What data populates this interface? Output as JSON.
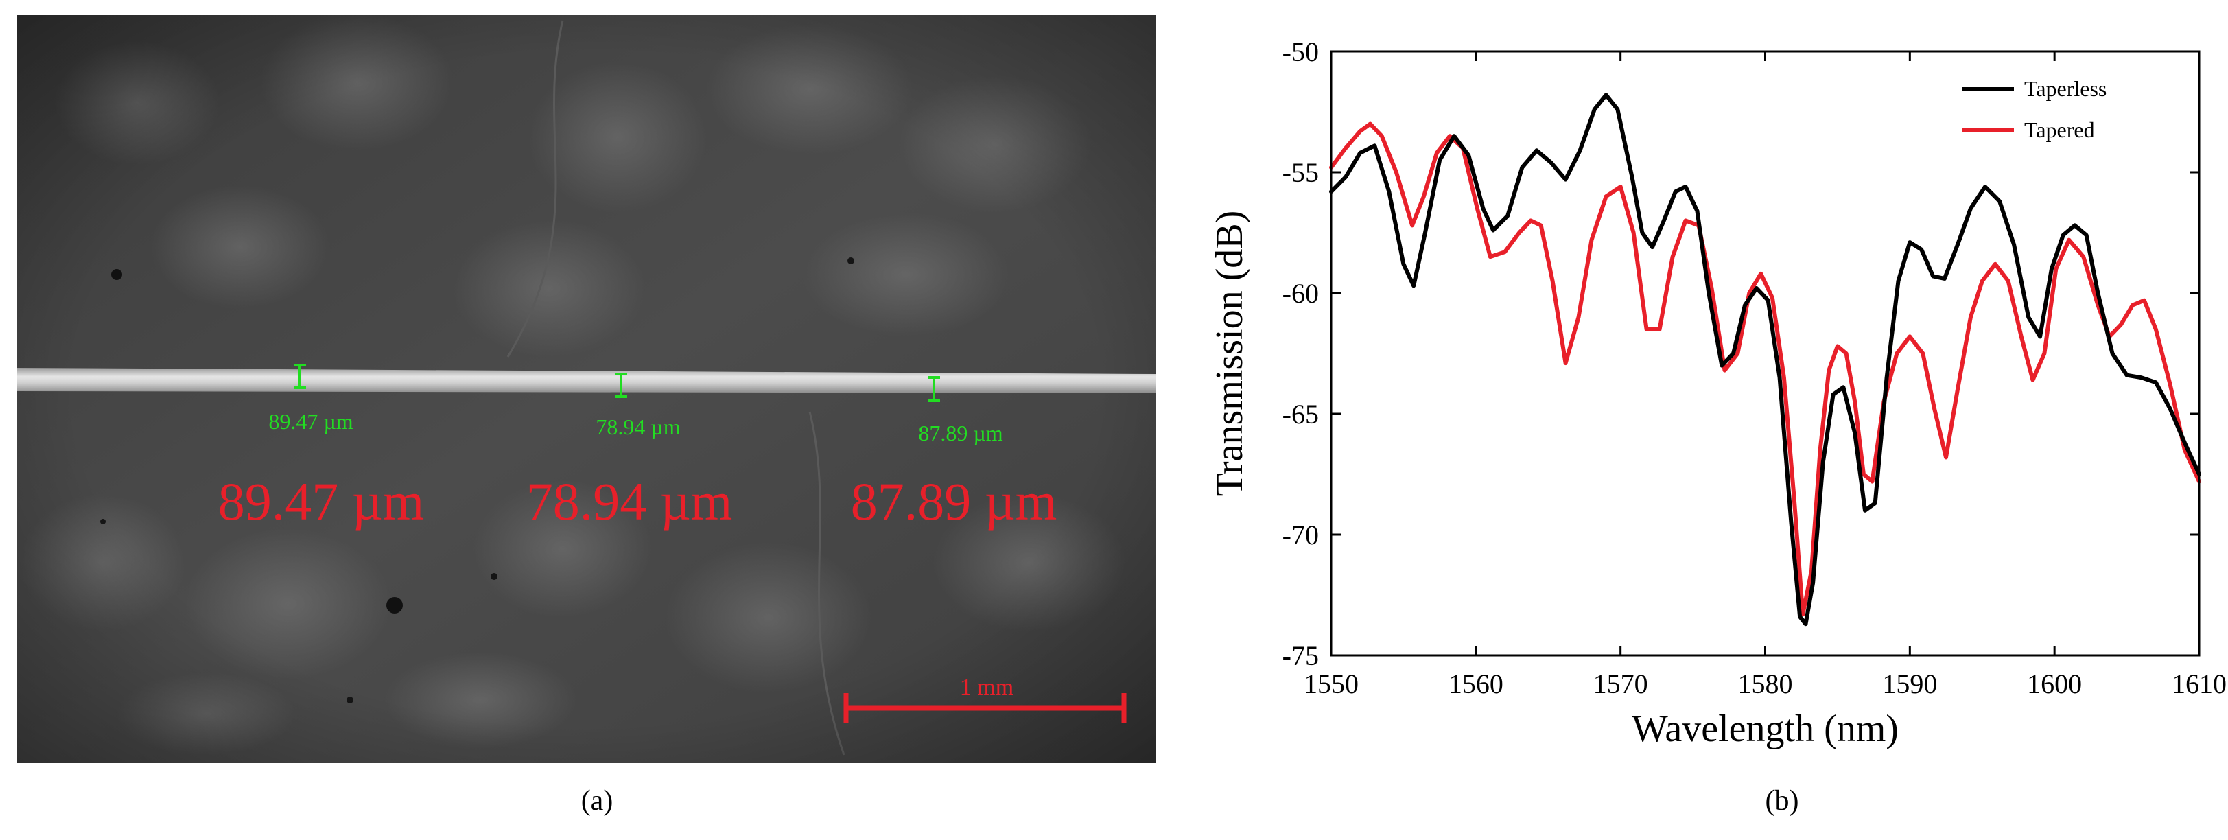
{
  "panel_a": {
    "caption": "(a)",
    "measurements": [
      {
        "label": "89.47 µm"
      },
      {
        "label": "78.94 µm"
      },
      {
        "label": "87.89 µm"
      }
    ],
    "scale_bar": {
      "label": "1 mm"
    },
    "colors": {
      "measure": "#22dd22",
      "annotation": "#e8202a",
      "scale": "#e8202a"
    }
  },
  "panel_b": {
    "caption": "(b)"
  },
  "chart_data": {
    "type": "line",
    "title": "",
    "xlabel": "Wavelength (nm)",
    "ylabel": "Transmission (dB)",
    "xlim": [
      1550,
      1610
    ],
    "ylim": [
      -75,
      -50
    ],
    "xticks": [
      1550,
      1560,
      1570,
      1580,
      1590,
      1600,
      1610
    ],
    "yticks": [
      -50,
      -55,
      -60,
      -65,
      -70,
      -75
    ],
    "legend_position": "top-right",
    "grid": false,
    "series": [
      {
        "name": "Taperless",
        "color": "#000000",
        "x": [
          1550,
          1551,
          1552,
          1553,
          1554,
          1555,
          1555.7,
          1556.5,
          1557.5,
          1558.5,
          1559.5,
          1560.5,
          1561.2,
          1562.2,
          1563.2,
          1564.2,
          1565.2,
          1566.2,
          1567.2,
          1568.2,
          1569,
          1569.8,
          1570.8,
          1571.5,
          1572.2,
          1573,
          1573.8,
          1574.5,
          1575.3,
          1576.1,
          1577,
          1577.8,
          1578.6,
          1579.4,
          1580.2,
          1581,
          1581.8,
          1582.4,
          1582.8,
          1583.3,
          1584,
          1584.7,
          1585.4,
          1586.2,
          1586.9,
          1587.6,
          1588.4,
          1589.2,
          1590,
          1590.8,
          1591.6,
          1592.4,
          1593.3,
          1594.2,
          1595.2,
          1596.2,
          1597.2,
          1598.2,
          1599,
          1599.8,
          1600.6,
          1601.4,
          1602.2,
          1603,
          1604,
          1605,
          1606,
          1607,
          1608,
          1609,
          1610
        ],
        "y": [
          -55.8,
          -55.2,
          -54.2,
          -53.9,
          -55.8,
          -58.8,
          -59.7,
          -57.5,
          -54.5,
          -53.5,
          -54.3,
          -56.5,
          -57.4,
          -56.8,
          -54.8,
          -54.1,
          -54.6,
          -55.3,
          -54.1,
          -52.4,
          -51.8,
          -52.4,
          -55.2,
          -57.5,
          -58.1,
          -57.0,
          -55.8,
          -55.6,
          -56.6,
          -60.0,
          -63.0,
          -62.5,
          -60.5,
          -59.8,
          -60.3,
          -63.5,
          -69.5,
          -73.4,
          -73.7,
          -72.0,
          -67.0,
          -64.2,
          -63.9,
          -65.8,
          -69.0,
          -68.7,
          -63.5,
          -59.5,
          -57.9,
          -58.2,
          -59.3,
          -59.4,
          -58.0,
          -56.5,
          -55.6,
          -56.2,
          -58.0,
          -61.0,
          -61.8,
          -59.0,
          -57.6,
          -57.2,
          -57.6,
          -60.0,
          -62.5,
          -63.4,
          -63.5,
          -63.7,
          -64.8,
          -66.2,
          -67.5
        ]
      },
      {
        "name": "Tapered",
        "color": "#e8202a",
        "x": [
          1550,
          1551,
          1552,
          1552.7,
          1553.5,
          1554.5,
          1555.6,
          1556.4,
          1557.3,
          1558.2,
          1559.1,
          1560.1,
          1561,
          1562,
          1563,
          1563.8,
          1564.5,
          1565.3,
          1566.2,
          1567.1,
          1568,
          1569,
          1570,
          1570.9,
          1571.8,
          1572.7,
          1573.6,
          1574.5,
          1575.4,
          1576.3,
          1577.2,
          1578.1,
          1578.9,
          1579.7,
          1580.5,
          1581.3,
          1582,
          1582.6,
          1583.2,
          1583.8,
          1584.4,
          1585,
          1585.6,
          1586.2,
          1586.8,
          1587.4,
          1588.2,
          1589.1,
          1590,
          1590.9,
          1591.7,
          1592.5,
          1593.3,
          1594.2,
          1595,
          1595.9,
          1596.8,
          1597.7,
          1598.5,
          1599.3,
          1600.1,
          1601,
          1602,
          1603,
          1603.8,
          1604.6,
          1605.4,
          1606.2,
          1607,
          1608,
          1609,
          1610
        ],
        "y": [
          -54.8,
          -54.0,
          -53.3,
          -53.0,
          -53.5,
          -55.0,
          -57.2,
          -56.0,
          -54.2,
          -53.5,
          -54.0,
          -56.5,
          -58.5,
          -58.3,
          -57.5,
          -57.0,
          -57.2,
          -59.5,
          -62.9,
          -61.0,
          -57.8,
          -56.0,
          -55.6,
          -57.5,
          -61.5,
          -61.5,
          -58.5,
          -57.0,
          -57.2,
          -59.8,
          -63.2,
          -62.5,
          -60.0,
          -59.2,
          -60.2,
          -63.5,
          -68.5,
          -73.3,
          -71.5,
          -66.5,
          -63.2,
          -62.2,
          -62.5,
          -64.5,
          -67.5,
          -67.8,
          -64.5,
          -62.5,
          -61.8,
          -62.5,
          -64.8,
          -66.8,
          -64.0,
          -61.0,
          -59.5,
          -58.8,
          -59.5,
          -61.8,
          -63.6,
          -62.5,
          -59.0,
          -57.8,
          -58.5,
          -60.5,
          -61.8,
          -61.3,
          -60.5,
          -60.3,
          -61.5,
          -63.8,
          -66.5,
          -67.8
        ]
      }
    ]
  }
}
